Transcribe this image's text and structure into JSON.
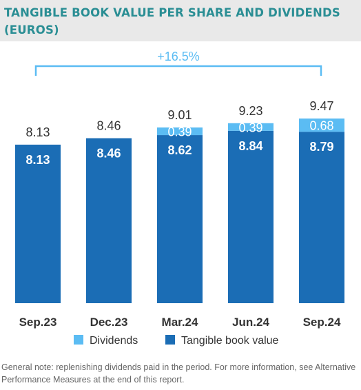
{
  "title": "TANGIBLE BOOK VALUE PER SHARE AND DIVIDENDS (EUROS)",
  "note": "General note: replenishing dividends paid in the period. For more information, see Alternative Performance Measures at the end of this report.",
  "colors": {
    "tangible": "#1b6db5",
    "dividends": "#5bbcf3",
    "bracket": "#5bbcf3",
    "title": "#2a8e94",
    "text": "#333333"
  },
  "chart_data": {
    "type": "bar",
    "stacked": true,
    "categories": [
      "Sep.23",
      "Dec.23",
      "Mar.24",
      "Jun.24",
      "Sep.24"
    ],
    "series": [
      {
        "name": "Tangible book value",
        "values": [
          8.13,
          8.46,
          8.62,
          8.84,
          8.79
        ],
        "labels": [
          "8.13",
          "8.46",
          "8.62",
          "8.84",
          "8.79"
        ]
      },
      {
        "name": "Dividends",
        "values": [
          0,
          0,
          0.39,
          0.39,
          0.68
        ],
        "labels": [
          "",
          "",
          "0.39",
          "0.39",
          "0.68"
        ]
      }
    ],
    "totals": [
      "8.13",
      "8.46",
      "9.01",
      "9.23",
      "9.47"
    ],
    "annotation": {
      "text": "+16.5%",
      "from": "Sep.23",
      "to": "Sep.24"
    },
    "legend": [
      "Dividends",
      "Tangible book value"
    ],
    "legend_position": "bottom",
    "grid": false,
    "y_axis_visible": false
  }
}
